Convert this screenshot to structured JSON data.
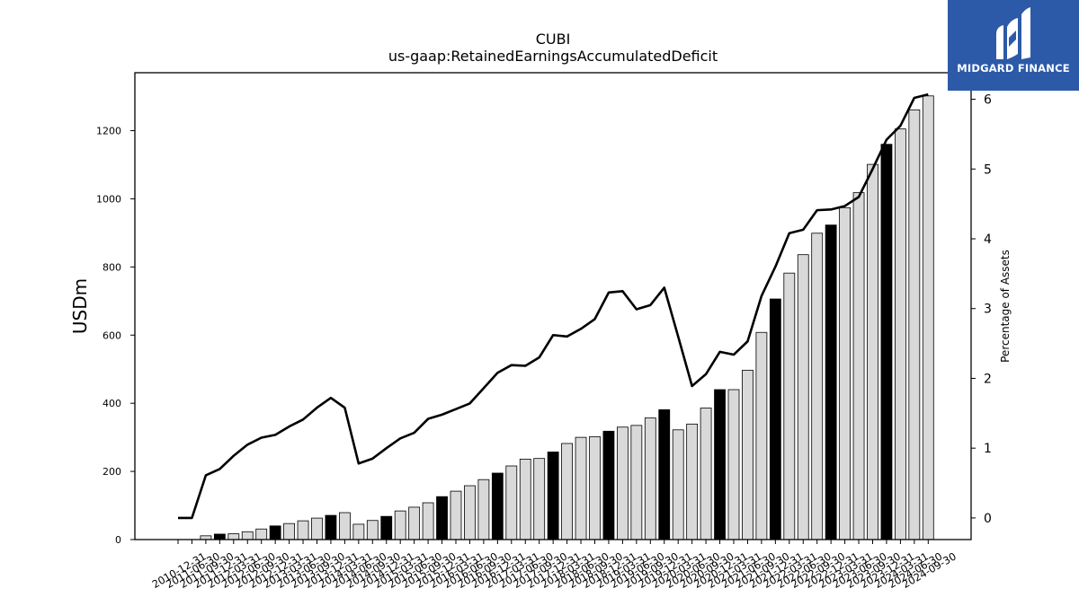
{
  "logo": {
    "text": "MIDGARD FINANCE"
  },
  "chart_data": {
    "type": "bar",
    "title": "CUBI",
    "subtitle": "us-gaap:RetainedEarningsAccumulatedDeficit",
    "ylabel": "USDm",
    "y2label": "Percentage of Assets",
    "ylim": [
      0,
      1370
    ],
    "y2lim": [
      -0.31,
      6.38
    ],
    "yticks": [
      0,
      200,
      400,
      600,
      800,
      1000,
      1200
    ],
    "y2ticks": [
      0,
      1,
      2,
      3,
      4,
      5,
      6
    ],
    "grid": false,
    "legend": "none",
    "bar_colors": {
      "quarter": "#d9d9d9",
      "year_end": "#000000",
      "edge": "#000000"
    },
    "line_color": "#000000",
    "categories": [
      "2010-12-31",
      "2011-06-30",
      "2011-09-30",
      "2011-12-31",
      "2012-03-31",
      "2012-06-30",
      "2012-09-30",
      "2012-12-31",
      "2013-03-31",
      "2013-06-30",
      "2013-09-30",
      "2013-12-31",
      "2014-03-31",
      "2014-06-30",
      "2014-09-30",
      "2014-12-31",
      "2015-03-31",
      "2015-06-30",
      "2015-09-30",
      "2015-12-31",
      "2016-03-31",
      "2016-06-30",
      "2016-09-30",
      "2016-12-31",
      "2017-03-31",
      "2017-06-30",
      "2017-09-30",
      "2017-12-31",
      "2018-03-31",
      "2018-06-30",
      "2018-09-30",
      "2018-12-31",
      "2019-03-31",
      "2019-06-30",
      "2019-09-30",
      "2019-12-31",
      "2020-03-31",
      "2020-06-30",
      "2020-09-30",
      "2020-12-31",
      "2021-03-31",
      "2021-06-30",
      "2021-09-30",
      "2021-12-31",
      "2022-03-31",
      "2022-06-30",
      "2022-09-30",
      "2022-12-31",
      "2023-03-31",
      "2023-06-30",
      "2023-09-30",
      "2023-12-31",
      "2024-03-31",
      "2024-06-30",
      "2024-09-30"
    ],
    "series": [
      {
        "type": "bar",
        "axis": "left",
        "values": [
          0,
          0,
          11,
          16,
          17,
          23,
          31,
          40,
          47,
          55,
          63,
          71,
          79,
          45,
          56,
          68,
          84,
          95,
          108,
          126,
          142,
          158,
          176,
          195,
          216,
          236,
          238,
          257,
          282,
          300,
          302,
          318,
          330,
          335,
          357,
          381,
          322,
          339,
          386,
          440,
          440,
          497,
          608,
          706,
          782,
          836,
          899,
          923,
          974,
          1018,
          1101,
          1160,
          1205,
          1261,
          1302
        ]
      },
      {
        "type": "line",
        "axis": "right",
        "values": [
          0.0,
          0.0,
          0.61,
          0.7,
          0.89,
          1.05,
          1.15,
          1.19,
          1.31,
          1.41,
          1.58,
          1.72,
          1.58,
          0.78,
          0.85,
          1.0,
          1.14,
          1.22,
          1.42,
          1.48,
          1.56,
          1.64,
          1.86,
          2.08,
          2.19,
          2.18,
          2.3,
          2.62,
          2.6,
          2.71,
          2.85,
          3.23,
          3.25,
          2.99,
          3.05,
          3.3,
          2.6,
          1.89,
          2.06,
          2.38,
          2.34,
          2.53,
          3.18,
          3.6,
          4.08,
          4.13,
          4.41,
          4.42,
          4.47,
          4.6,
          5.0,
          5.42,
          5.62,
          6.02,
          6.07
        ]
      }
    ]
  }
}
